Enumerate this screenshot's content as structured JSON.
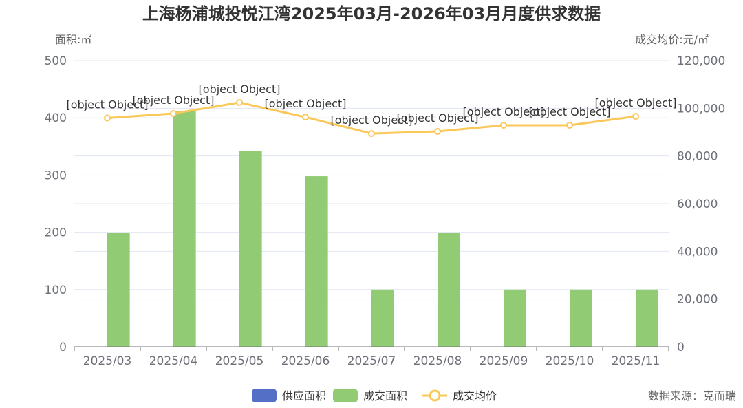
{
  "chart_data": {
    "type": "bar",
    "title": "上海杨浦城投悦江湾2025年03月-2026年03月月度供求数据",
    "categories": [
      "2025/03",
      "2025/04",
      "2025/05",
      "2025/06",
      "2025/07",
      "2025/08",
      "2025/09",
      "2025/10",
      "2025/11"
    ],
    "y_left": {
      "label": "面积:㎡",
      "range": [
        0,
        500
      ],
      "ticks": [
        0,
        100,
        200,
        300,
        400,
        500
      ]
    },
    "y_right": {
      "label": "成交均价:元/㎡",
      "range": [
        0,
        120000
      ],
      "ticks": [
        "0",
        "20,000",
        "40,000",
        "60,000",
        "80,000",
        "100,000",
        "120,000"
      ]
    },
    "series": [
      {
        "name": "供应面积",
        "type": "bar",
        "axis": "left",
        "color": "#5470c6",
        "values": [
          0,
          0,
          0,
          0,
          0,
          0,
          0,
          0,
          0
        ]
      },
      {
        "name": "成交面积",
        "type": "bar",
        "axis": "left",
        "color": "#91cc75",
        "values": [
          199,
          412,
          342,
          298,
          100,
          199,
          100,
          100,
          100
        ]
      },
      {
        "name": "成交均价",
        "type": "line",
        "axis": "right",
        "color": "#fac858",
        "values": [
          95900,
          97800,
          102400,
          96300,
          89400,
          90300,
          92900,
          92900,
          96600
        ]
      }
    ],
    "point_labels": [
      "[object Object]",
      "[object Object]",
      "[object Object]",
      "[object Object]",
      "[object Object]",
      "[object Object]",
      "[object Object]",
      "[object Object]",
      "[object Object]"
    ],
    "grid": true,
    "legend_position": "bottom-center"
  },
  "source": "数据来源：克而瑞"
}
